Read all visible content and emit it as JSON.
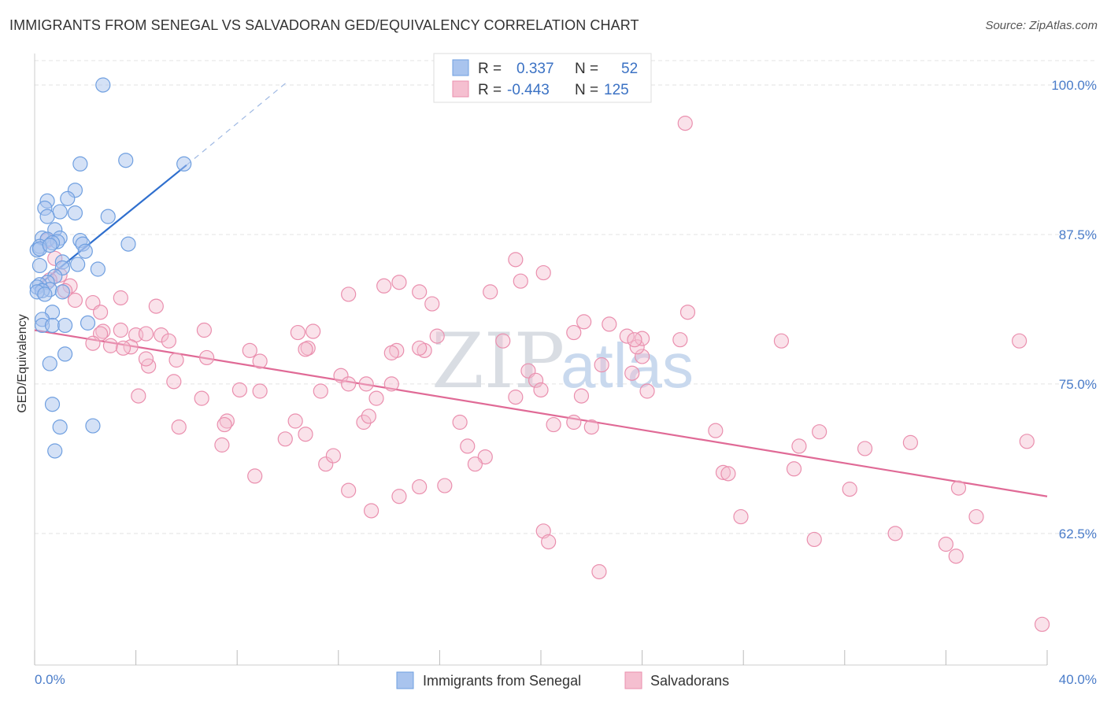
{
  "header": {
    "title": "IMMIGRANTS FROM SENEGAL VS SALVADORAN GED/EQUIVALENCY CORRELATION CHART",
    "source": "Source: ZipAtlas.com"
  },
  "watermark": {
    "zip": "ZIP",
    "atlas": "atlas"
  },
  "colors": {
    "blue_fill": "#a9c4ee",
    "blue_stroke": "#6f9fe0",
    "blue_line": "#2f6fce",
    "pink_fill": "#f5bfd0",
    "pink_stroke": "#ea8fae",
    "pink_line": "#e06a96",
    "tick_text": "#4a7cc9",
    "grid": "#e3e3e3"
  },
  "legend_top": {
    "rows": [
      {
        "r_label": "R =",
        "r_value": "0.337",
        "n_label": "N =",
        "n_value": "52"
      },
      {
        "r_label": "R =",
        "r_value": "-0.443",
        "n_label": "N =",
        "n_value": "125"
      }
    ]
  },
  "chart_data": {
    "type": "scatter",
    "title": "IMMIGRANTS FROM SENEGAL VS SALVADORAN GED/EQUIVALENCY CORRELATION CHART",
    "xlabel": "",
    "ylabel": "GED/Equivalency",
    "xlim": [
      0,
      40
    ],
    "ylim": [
      51.5,
      102.5
    ],
    "y_ticks": [
      62.5,
      75.0,
      87.5,
      100.0
    ],
    "y_tick_labels": [
      "62.5%",
      "75.0%",
      "87.5%",
      "100.0%"
    ],
    "x_tick_labels": [
      "0.0%",
      "40.0%"
    ],
    "x_minor_ticks": [
      0,
      4,
      8,
      12,
      16,
      20,
      24,
      28,
      32,
      36,
      40
    ],
    "grid": true,
    "legend_position": "bottom",
    "series": [
      {
        "name": "Immigrants from Senegal",
        "color": "#a9c4ee",
        "trend": {
          "x": [
            0.0,
            6.0
          ],
          "y": [
            83.0,
            93.3
          ],
          "dashed_extension_to": [
            10.0,
            100.3
          ]
        },
        "points": [
          [
            2.7,
            100.0
          ],
          [
            3.6,
            93.7
          ],
          [
            1.8,
            93.4
          ],
          [
            5.9,
            93.4
          ],
          [
            1.6,
            91.2
          ],
          [
            1.3,
            90.5
          ],
          [
            0.5,
            90.3
          ],
          [
            0.4,
            89.7
          ],
          [
            1.0,
            89.4
          ],
          [
            1.6,
            89.3
          ],
          [
            2.9,
            89.0
          ],
          [
            0.5,
            89.0
          ],
          [
            0.8,
            87.9
          ],
          [
            0.3,
            87.2
          ],
          [
            0.5,
            87.1
          ],
          [
            1.0,
            87.2
          ],
          [
            1.8,
            87.0
          ],
          [
            0.9,
            86.9
          ],
          [
            0.7,
            86.8
          ],
          [
            1.9,
            86.7
          ],
          [
            3.7,
            86.7
          ],
          [
            0.2,
            86.5
          ],
          [
            0.1,
            86.2
          ],
          [
            2.0,
            86.1
          ],
          [
            1.1,
            85.2
          ],
          [
            1.7,
            85.0
          ],
          [
            0.2,
            84.9
          ],
          [
            1.1,
            84.7
          ],
          [
            2.5,
            84.6
          ],
          [
            0.8,
            84.0
          ],
          [
            0.5,
            83.5
          ],
          [
            0.2,
            83.3
          ],
          [
            0.1,
            83.1
          ],
          [
            0.6,
            82.9
          ],
          [
            0.3,
            82.8
          ],
          [
            0.1,
            82.7
          ],
          [
            1.1,
            82.7
          ],
          [
            0.4,
            82.5
          ],
          [
            0.7,
            81.0
          ],
          [
            0.3,
            80.4
          ],
          [
            2.1,
            80.1
          ],
          [
            0.3,
            79.9
          ],
          [
            0.7,
            79.9
          ],
          [
            1.2,
            79.9
          ],
          [
            1.2,
            77.5
          ],
          [
            0.6,
            76.7
          ],
          [
            0.7,
            73.3
          ],
          [
            1.0,
            71.4
          ],
          [
            2.3,
            71.5
          ],
          [
            0.8,
            69.4
          ],
          [
            0.2,
            86.3
          ],
          [
            0.6,
            86.6
          ]
        ]
      },
      {
        "name": "Salvadorans",
        "color": "#f5bfd0",
        "trend": {
          "x": [
            0.0,
            40.0
          ],
          "y": [
            79.5,
            65.6
          ]
        },
        "points": [
          [
            0.5,
            87.0
          ],
          [
            0.8,
            85.5
          ],
          [
            1.0,
            84.1
          ],
          [
            0.6,
            83.7
          ],
          [
            1.4,
            83.2
          ],
          [
            1.2,
            82.8
          ],
          [
            1.6,
            82.0
          ],
          [
            2.3,
            81.8
          ],
          [
            2.6,
            81.0
          ],
          [
            3.4,
            82.2
          ],
          [
            4.8,
            81.5
          ],
          [
            2.7,
            79.4
          ],
          [
            2.6,
            79.2
          ],
          [
            3.4,
            79.5
          ],
          [
            4.0,
            79.1
          ],
          [
            5.0,
            79.1
          ],
          [
            5.3,
            78.6
          ],
          [
            6.7,
            79.5
          ],
          [
            2.3,
            78.4
          ],
          [
            3.0,
            78.2
          ],
          [
            3.8,
            78.1
          ],
          [
            3.5,
            78.0
          ],
          [
            4.4,
            79.2
          ],
          [
            4.5,
            76.5
          ],
          [
            4.4,
            77.1
          ],
          [
            5.6,
            77.0
          ],
          [
            6.8,
            77.2
          ],
          [
            8.5,
            77.8
          ],
          [
            8.9,
            76.9
          ],
          [
            4.1,
            74.0
          ],
          [
            5.5,
            75.2
          ],
          [
            6.6,
            73.8
          ],
          [
            8.1,
            74.5
          ],
          [
            8.9,
            74.4
          ],
          [
            5.7,
            71.4
          ],
          [
            7.6,
            71.9
          ],
          [
            7.4,
            69.9
          ],
          [
            7.5,
            71.6
          ],
          [
            8.7,
            67.3
          ],
          [
            9.9,
            70.4
          ],
          [
            10.3,
            71.9
          ],
          [
            10.7,
            70.8
          ],
          [
            10.8,
            78.0
          ],
          [
            10.4,
            79.3
          ],
          [
            10.7,
            77.9
          ],
          [
            11.0,
            79.4
          ],
          [
            11.3,
            74.4
          ],
          [
            11.5,
            68.3
          ],
          [
            11.8,
            69.0
          ],
          [
            12.1,
            75.7
          ],
          [
            12.4,
            75.0
          ],
          [
            13.0,
            71.8
          ],
          [
            13.2,
            72.3
          ],
          [
            13.1,
            75.0
          ],
          [
            13.5,
            73.8
          ],
          [
            14.1,
            75.0
          ],
          [
            14.3,
            77.8
          ],
          [
            12.4,
            66.1
          ],
          [
            13.3,
            64.4
          ],
          [
            14.4,
            65.6
          ],
          [
            12.4,
            82.5
          ],
          [
            13.8,
            83.2
          ],
          [
            14.4,
            83.5
          ],
          [
            15.2,
            82.7
          ],
          [
            15.7,
            81.7
          ],
          [
            15.9,
            79.0
          ],
          [
            15.4,
            77.8
          ],
          [
            14.1,
            77.6
          ],
          [
            15.2,
            78.0
          ],
          [
            16.8,
            71.8
          ],
          [
            17.1,
            69.8
          ],
          [
            17.8,
            68.9
          ],
          [
            16.2,
            66.5
          ],
          [
            15.2,
            66.4
          ],
          [
            17.4,
            68.3
          ],
          [
            18.0,
            82.7
          ],
          [
            18.5,
            78.6
          ],
          [
            19.0,
            85.4
          ],
          [
            19.2,
            83.6
          ],
          [
            20.1,
            84.3
          ],
          [
            19.5,
            76.1
          ],
          [
            19.8,
            75.3
          ],
          [
            20.0,
            74.5
          ],
          [
            20.5,
            71.6
          ],
          [
            19.0,
            73.9
          ],
          [
            21.6,
            74.0
          ],
          [
            21.3,
            71.8
          ],
          [
            21.7,
            80.2
          ],
          [
            21.3,
            79.3
          ],
          [
            22.0,
            71.4
          ],
          [
            22.4,
            76.6
          ],
          [
            22.7,
            80.0
          ],
          [
            23.4,
            79.0
          ],
          [
            23.6,
            75.9
          ],
          [
            24.0,
            77.3
          ],
          [
            23.8,
            78.1
          ],
          [
            24.0,
            78.8
          ],
          [
            23.7,
            78.7
          ],
          [
            24.2,
            74.4
          ],
          [
            25.8,
            81.0
          ],
          [
            25.5,
            78.7
          ],
          [
            26.9,
            71.1
          ],
          [
            27.2,
            67.6
          ],
          [
            27.4,
            67.5
          ],
          [
            27.9,
            63.9
          ],
          [
            29.5,
            78.6
          ],
          [
            30.0,
            67.9
          ],
          [
            30.2,
            69.8
          ],
          [
            31.0,
            71.0
          ],
          [
            32.2,
            66.2
          ],
          [
            32.8,
            69.6
          ],
          [
            34.0,
            62.5
          ],
          [
            34.6,
            70.1
          ],
          [
            36.0,
            61.6
          ],
          [
            36.5,
            66.3
          ],
          [
            37.2,
            63.9
          ],
          [
            38.9,
            78.6
          ],
          [
            39.2,
            70.2
          ],
          [
            20.1,
            62.7
          ],
          [
            20.3,
            61.8
          ],
          [
            22.3,
            59.3
          ],
          [
            25.7,
            96.8
          ],
          [
            30.8,
            62.0
          ],
          [
            36.4,
            60.6
          ],
          [
            39.8,
            54.9
          ]
        ]
      }
    ]
  }
}
